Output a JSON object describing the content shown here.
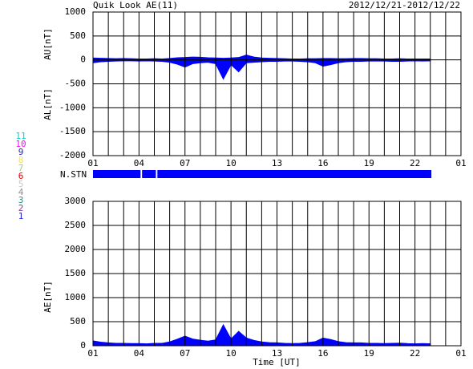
{
  "title": "Quik Look AE(11)",
  "date_range": "2012/12/21-2012/12/22",
  "x_label": "Time [UT]",
  "chart_data": [
    {
      "type": "area",
      "xlim": [
        0,
        24
      ],
      "xticks": [
        {
          "value": 0,
          "label": "01"
        },
        {
          "value": 3,
          "label": "04"
        },
        {
          "value": 6,
          "label": "07"
        },
        {
          "value": 9,
          "label": "10"
        },
        {
          "value": 12,
          "label": "13"
        },
        {
          "value": 15,
          "label": "16"
        },
        {
          "value": 18,
          "label": "19"
        },
        {
          "value": 21,
          "label": "22"
        },
        {
          "value": 24,
          "label": "01"
        }
      ],
      "xgrid": [
        0,
        1,
        2,
        3,
        4,
        5,
        6,
        7,
        8,
        9,
        10,
        11,
        12,
        13,
        14,
        15,
        16,
        17,
        18,
        19,
        20,
        21,
        22,
        23,
        24
      ],
      "ylim": [
        -2000,
        1000
      ],
      "yticks": [
        1000,
        500,
        0,
        -500,
        -1000,
        -1500,
        -2000
      ],
      "grid": true,
      "axis_labels": [
        "AU[nT]",
        "AL[nT]"
      ],
      "x": [
        0,
        0.5,
        1,
        1.5,
        2,
        2.5,
        3,
        3.5,
        4,
        4.5,
        5,
        5.5,
        6,
        6.5,
        7,
        7.5,
        8,
        8.5,
        9,
        9.5,
        10,
        10.5,
        11,
        11.5,
        12,
        12.5,
        13,
        13.5,
        14,
        14.5,
        15,
        15.5,
        16,
        16.5,
        17,
        17.5,
        18,
        18.5,
        19,
        19.5,
        20,
        20.5,
        21,
        21.5,
        22
      ],
      "series": [
        {
          "name": "AU",
          "color": "#0000ff",
          "values": [
            40,
            35,
            30,
            25,
            30,
            25,
            20,
            20,
            25,
            20,
            30,
            45,
            50,
            60,
            55,
            45,
            40,
            35,
            40,
            50,
            100,
            60,
            40,
            35,
            30,
            25,
            20,
            20,
            25,
            25,
            30,
            30,
            25,
            25,
            30,
            30,
            25,
            25,
            20,
            20,
            25,
            20,
            20,
            20,
            20
          ]
        },
        {
          "name": "AL",
          "color": "#0000ff",
          "values": [
            -60,
            -40,
            -30,
            -25,
            -20,
            -20,
            -25,
            -20,
            -25,
            -30,
            -50,
            -90,
            -150,
            -80,
            -60,
            -50,
            -80,
            -400,
            -100,
            -250,
            -60,
            -50,
            -40,
            -30,
            -30,
            -25,
            -25,
            -30,
            -40,
            -60,
            -130,
            -100,
            -60,
            -40,
            -30,
            -30,
            -25,
            -25,
            -25,
            -30,
            -30,
            -25,
            -20,
            -25,
            -20
          ]
        }
      ]
    },
    {
      "type": "area",
      "xlim": [
        0,
        24
      ],
      "xticks": [
        {
          "value": 0,
          "label": "01"
        },
        {
          "value": 3,
          "label": "04"
        },
        {
          "value": 6,
          "label": "07"
        },
        {
          "value": 9,
          "label": "10"
        },
        {
          "value": 12,
          "label": "13"
        },
        {
          "value": 15,
          "label": "16"
        },
        {
          "value": 18,
          "label": "19"
        },
        {
          "value": 21,
          "label": "22"
        },
        {
          "value": 24,
          "label": "01"
        }
      ],
      "xgrid": [
        0,
        1,
        2,
        3,
        4,
        5,
        6,
        7,
        8,
        9,
        10,
        11,
        12,
        13,
        14,
        15,
        16,
        17,
        18,
        19,
        20,
        21,
        22,
        23,
        24
      ],
      "ylim": [
        0,
        3000
      ],
      "yticks": [
        3000,
        2500,
        2000,
        1500,
        1000,
        500,
        0
      ],
      "grid": true,
      "axis_labels": [
        "AE[nT]"
      ],
      "x": [
        0,
        0.5,
        1,
        1.5,
        2,
        2.5,
        3,
        3.5,
        4,
        4.5,
        5,
        5.5,
        6,
        6.5,
        7,
        7.5,
        8,
        8.5,
        9,
        9.5,
        10,
        10.5,
        11,
        11.5,
        12,
        12.5,
        13,
        13.5,
        14,
        14.5,
        15,
        15.5,
        16,
        16.5,
        17,
        17.5,
        18,
        18.5,
        19,
        19.5,
        20,
        20.5,
        21,
        21.5,
        22
      ],
      "series": [
        {
          "name": "AE",
          "color": "#0000ff",
          "values": [
            100,
            75,
            60,
            50,
            50,
            45,
            45,
            40,
            50,
            50,
            80,
            135,
            200,
            140,
            115,
            95,
            120,
            435,
            140,
            300,
            160,
            110,
            80,
            65,
            60,
            50,
            45,
            50,
            65,
            85,
            160,
            130,
            85,
            65,
            60,
            60,
            50,
            50,
            45,
            50,
            55,
            45,
            40,
            45,
            40
          ]
        }
      ]
    }
  ],
  "stations": {
    "label": "N.STN",
    "color": "#0000ff",
    "segments": [
      {
        "start": 0,
        "end": 3.1
      },
      {
        "start": 3.2,
        "end": 4.1
      },
      {
        "start": 4.2,
        "end": 22.07
      }
    ],
    "legend": [
      {
        "label": "11",
        "color": "#00d0d0"
      },
      {
        "label": "10",
        "color": "#ff00ff"
      },
      {
        "label": "9",
        "color": "#2020c0"
      },
      {
        "label": "8",
        "color": "#f0e060"
      },
      {
        "label": "7",
        "color": "#a0d080"
      },
      {
        "label": "6",
        "color": "#e00000"
      },
      {
        "label": "5",
        "color": "#c8c8c8"
      },
      {
        "label": "4",
        "color": "#909090"
      },
      {
        "label": "3",
        "color": "#209090"
      },
      {
        "label": "2",
        "color": "#9030a0"
      },
      {
        "label": "1",
        "color": "#2020e0"
      }
    ]
  }
}
